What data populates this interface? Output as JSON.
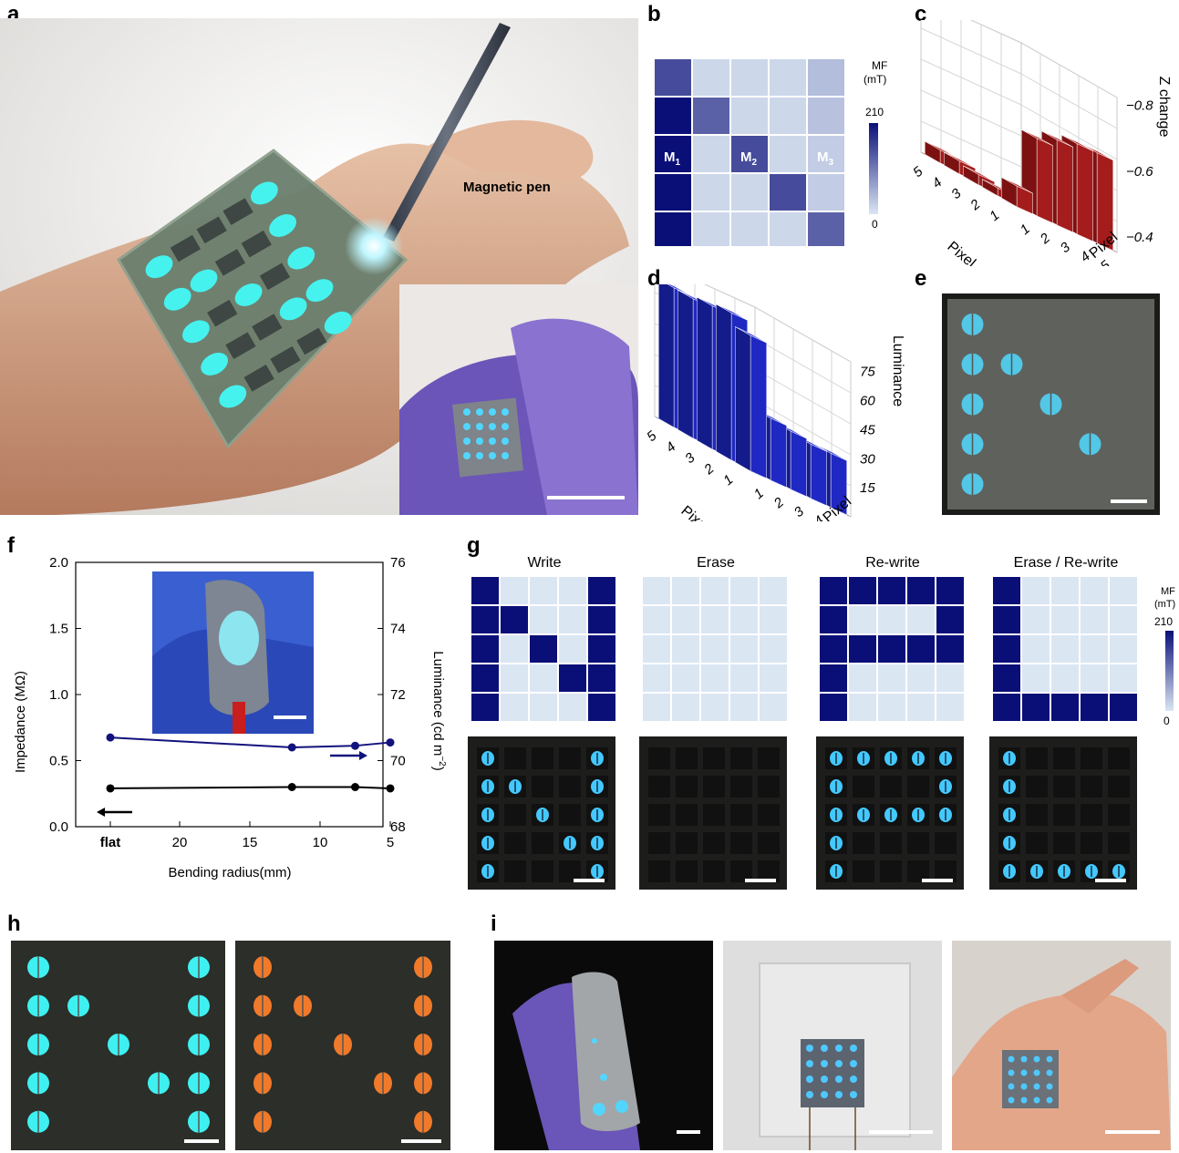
{
  "panels": {
    "a": {
      "letter": "a",
      "annotation": "Magnetic pen"
    },
    "b": {
      "letter": "b",
      "legend_title_1": "MF",
      "legend_title_2": "(mT)",
      "legend_max": "210",
      "legend_min": "0",
      "markers": [
        {
          "base": "M",
          "sub": "1"
        },
        {
          "base": "M",
          "sub": "2"
        },
        {
          "base": "M",
          "sub": "3"
        }
      ]
    },
    "c": {
      "letter": "c",
      "z_label": "Z change",
      "z_ticks": [
        "−0.8",
        "−0.6",
        "−0.4"
      ],
      "axis_label_left": "Pixel",
      "axis_label_right": "Pixel",
      "ticks_left": [
        "5",
        "4",
        "3",
        "2",
        "1"
      ],
      "ticks_right": [
        "1",
        "2",
        "3",
        "4",
        "5"
      ]
    },
    "d": {
      "letter": "d",
      "z_label": "Luminance",
      "z_ticks": [
        "75",
        "60",
        "45",
        "30",
        "15"
      ],
      "axis_label_left": "Pixel",
      "axis_label_right": "Pixel",
      "ticks_left": [
        "5",
        "4",
        "3",
        "2",
        "1"
      ],
      "ticks_right": [
        "1",
        "2",
        "3",
        "4",
        "5"
      ]
    },
    "e": {
      "letter": "e"
    },
    "f": {
      "letter": "f",
      "xlabel": "Bending radius(mm)",
      "ylabel_left": "Impedance (MΩ)",
      "ylabel_right": "Luminance (cd m",
      "ylabel_right_sup": "−2",
      "ylabel_right_end": ")"
    },
    "g": {
      "letter": "g",
      "titles": [
        "Write",
        "Erase",
        "Re-write",
        "Erase / Re-write"
      ],
      "legend_title_1": "MF",
      "legend_title_2": "(mT)",
      "legend_max": "210",
      "legend_min": "0"
    },
    "h": {
      "letter": "h"
    },
    "i": {
      "letter": "i"
    }
  },
  "colors": {
    "navy": "#0a0f78",
    "light": "#dbe6f3",
    "mid": "#4f56a8",
    "red": "#9e1a1a",
    "blue": "#1d25b8",
    "cyan": "#3ff0f0",
    "orange": "#f07a2a"
  },
  "chart_data": [
    {
      "type": "heatmap",
      "panel": "b",
      "legend": "MF (mT)",
      "range": [
        0,
        210
      ],
      "grid": [
        [
          150,
          15,
          15,
          15,
          40
        ],
        [
          210,
          130,
          15,
          15,
          35
        ],
        [
          210,
          15,
          150,
          15,
          25
        ],
        [
          210,
          15,
          15,
          150,
          25
        ],
        [
          210,
          15,
          15,
          15,
          130
        ]
      ]
    },
    {
      "type": "bar",
      "panel": "c",
      "zlabel": "Z change",
      "zticks": [
        -0.8,
        -0.6,
        -0.4
      ],
      "xlabel": "Pixel",
      "ylabel": "Pixel",
      "letter_pattern": "L",
      "values_row": [
        -0.85,
        -0.85,
        -0.86,
        -0.87,
        -0.82
      ],
      "values_column": [
        -0.55,
        -0.55,
        -0.57,
        -0.6,
        -0.85
      ]
    },
    {
      "type": "bar",
      "panel": "d",
      "zlabel": "Luminance",
      "zticks": [
        15,
        30,
        45,
        60,
        75
      ],
      "xlabel": "Pixel",
      "ylabel": "Pixel",
      "letter_pattern": "L",
      "values_row": [
        72,
        72,
        74,
        76,
        70
      ],
      "values_column": [
        28,
        28,
        30,
        32,
        72
      ]
    },
    {
      "type": "line",
      "panel": "f",
      "xlabel": "Bending radius(mm)",
      "x_ticks": [
        "flat",
        "20",
        "15",
        "10",
        "5"
      ],
      "ylabel_left": "Impedance (MΩ)",
      "ylim_left": [
        0.0,
        2.0
      ],
      "y_ticks_left": [
        "0.0",
        "0.5",
        "1.0",
        "1.5",
        "2.0"
      ],
      "ylabel_right": "Luminance (cd m−2)",
      "ylim_right": [
        68,
        76
      ],
      "y_ticks_right": [
        "68",
        "70",
        "72",
        "74",
        "76"
      ],
      "series": [
        {
          "axis": "left",
          "color": "#000000",
          "x": [
            "flat",
            12,
            7.5,
            5
          ],
          "values": [
            0.29,
            0.3,
            0.3,
            0.29
          ]
        },
        {
          "axis": "right",
          "color": "#12127e",
          "x": [
            "flat",
            12,
            7.5,
            5
          ],
          "values": [
            70.7,
            70.4,
            70.45,
            70.55
          ]
        }
      ]
    },
    {
      "type": "heatmap",
      "panel": "g",
      "legend": "MF (mT)",
      "range": [
        0,
        210
      ],
      "grids": [
        {
          "title": "Write",
          "grid": [
            [
              1,
              0,
              0,
              0,
              1
            ],
            [
              1,
              1,
              0,
              0,
              1
            ],
            [
              1,
              0,
              1,
              0,
              1
            ],
            [
              1,
              0,
              0,
              1,
              1
            ],
            [
              1,
              0,
              0,
              0,
              1
            ]
          ]
        },
        {
          "title": "Erase",
          "grid": [
            [
              0,
              0,
              0,
              0,
              0
            ],
            [
              0,
              0,
              0,
              0,
              0
            ],
            [
              0,
              0,
              0,
              0,
              0
            ],
            [
              0,
              0,
              0,
              0,
              0
            ],
            [
              0,
              0,
              0,
              0,
              0
            ]
          ]
        },
        {
          "title": "Re-write",
          "grid": [
            [
              1,
              1,
              1,
              1,
              1
            ],
            [
              1,
              0,
              0,
              0,
              1
            ],
            [
              1,
              1,
              1,
              1,
              1
            ],
            [
              1,
              0,
              0,
              0,
              0
            ],
            [
              1,
              0,
              0,
              0,
              0
            ]
          ]
        },
        {
          "title": "Erase / Re-write",
          "grid": [
            [
              1,
              0,
              0,
              0,
              0
            ],
            [
              1,
              0,
              0,
              0,
              0
            ],
            [
              1,
              0,
              0,
              0,
              0
            ],
            [
              1,
              0,
              0,
              0,
              0
            ],
            [
              1,
              1,
              1,
              1,
              1
            ]
          ]
        }
      ]
    }
  ]
}
